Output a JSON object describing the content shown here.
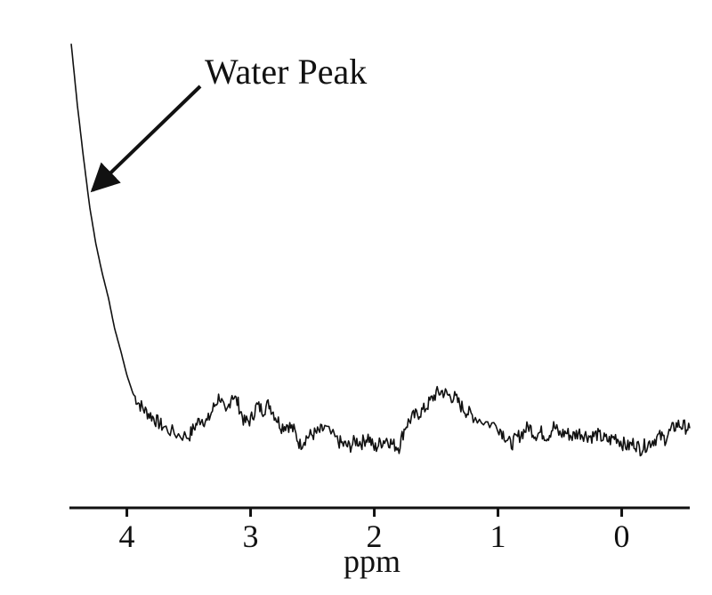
{
  "chart_data": {
    "type": "line",
    "title": "",
    "xlabel": "ppm",
    "ylabel": "",
    "x_reversed": true,
    "xlim": [
      4.45,
      -0.55
    ],
    "ylim": [
      0,
      10
    ],
    "xticks": [
      {
        "value": 4,
        "label": "4"
      },
      {
        "value": 3,
        "label": "3"
      },
      {
        "value": 2,
        "label": "2"
      },
      {
        "value": 1,
        "label": "1"
      },
      {
        "value": 0,
        "label": "0"
      }
    ],
    "grid": false,
    "legend": "none",
    "series": [
      {
        "color": "#111111",
        "x": [
          4.45,
          4.4,
          4.35,
          4.3,
          4.25,
          4.2,
          4.15,
          4.1,
          4.05,
          4.0,
          3.95,
          3.9,
          3.85,
          3.8,
          3.75,
          3.7,
          3.6,
          3.5,
          3.45,
          3.4,
          3.35,
          3.3,
          3.25,
          3.2,
          3.15,
          3.1,
          3.05,
          3.0,
          2.95,
          2.9,
          2.85,
          2.8,
          2.75,
          2.7,
          2.65,
          2.6,
          2.55,
          2.5,
          2.45,
          2.4,
          2.3,
          2.25,
          2.2,
          2.15,
          2.1,
          2.05,
          2.0,
          1.95,
          1.9,
          1.85,
          1.8,
          1.75,
          1.7,
          1.65,
          1.6,
          1.55,
          1.5,
          1.45,
          1.4,
          1.35,
          1.3,
          1.25,
          1.2,
          1.1,
          1.0,
          0.95,
          0.9,
          0.85,
          0.8,
          0.75,
          0.7,
          0.65,
          0.6,
          0.55,
          0.5,
          0.45,
          0.4,
          0.35,
          0.3,
          0.25,
          0.2,
          0.15,
          0.1,
          0.05,
          0.0,
          -0.05,
          -0.1,
          -0.15,
          -0.2,
          -0.25,
          -0.3,
          -0.35,
          -0.4,
          -0.45,
          -0.5,
          -0.55
        ],
        "y": [
          9.8,
          8.3,
          7.0,
          5.8,
          4.9,
          4.2,
          3.6,
          2.85,
          2.3,
          1.7,
          1.25,
          1.0,
          0.82,
          0.7,
          0.55,
          0.42,
          0.26,
          0.2,
          0.45,
          0.65,
          0.55,
          0.9,
          1.2,
          0.7,
          1.25,
          1.0,
          0.55,
          0.6,
          0.95,
          0.85,
          1.0,
          0.7,
          0.45,
          0.5,
          0.35,
          0.0,
          0.18,
          0.25,
          0.3,
          0.4,
          0.1,
          0.0,
          -0.05,
          0.1,
          0.05,
          0.2,
          -0.1,
          0.05,
          0.15,
          0.0,
          -0.05,
          0.45,
          0.65,
          0.75,
          0.85,
          1.05,
          1.25,
          1.3,
          1.2,
          1.15,
          0.95,
          0.8,
          0.7,
          0.55,
          0.45,
          0.25,
          0.0,
          0.15,
          0.3,
          0.45,
          0.25,
          0.3,
          0.2,
          0.45,
          0.25,
          0.3,
          0.2,
          0.3,
          0.25,
          0.2,
          0.25,
          0.15,
          0.1,
          0.2,
          0.05,
          -0.05,
          0.05,
          -0.1,
          0.0,
          0.1,
          0.2,
          0.15,
          0.35,
          0.5,
          0.45,
          0.4
        ]
      }
    ],
    "annotations": [
      {
        "text": "Water Peak",
        "points_to": {
          "x": 4.3,
          "y": 5.8
        }
      }
    ]
  }
}
